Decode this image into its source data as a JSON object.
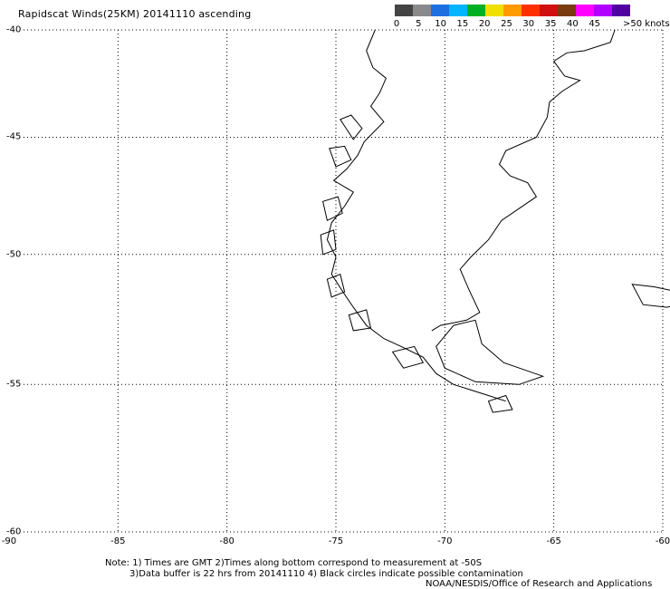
{
  "title": "Rapidscat Winds(25KM) 20141110 ascending",
  "wind_scale": {
    "labels": [
      "0",
      "5",
      "10",
      "15",
      "20",
      "25",
      "30",
      "35",
      "40",
      "45"
    ],
    "units_label": ">50 knots",
    "colors": [
      "#444444",
      "#8a8a8a",
      "#1e6fe0",
      "#00b4ff",
      "#00b020",
      "#f0e000",
      "#ff9a00",
      "#ff3000",
      "#d01010",
      "#7a3b10",
      "#ff00ff",
      "#b000ff",
      "#5000a0"
    ]
  },
  "map": {
    "longitude_labels": [
      "-90",
      "-85",
      "-80",
      "-75",
      "-70",
      "-65",
      "-60"
    ],
    "latitude_labels": [
      "-40",
      "-45",
      "-50",
      "-55",
      "-60"
    ],
    "grid_style": "dotted",
    "coastline_color": "#000000"
  },
  "notes": {
    "line1": "Note: 1) Times are GMT 2)Times along bottom correspond to measurement at -50S",
    "line2": "3)Data buffer is 22 hrs from 20141110 4) Black circles indicate possible contamination",
    "line3": "NOAA/NESDIS/Office of Research and Applications"
  }
}
